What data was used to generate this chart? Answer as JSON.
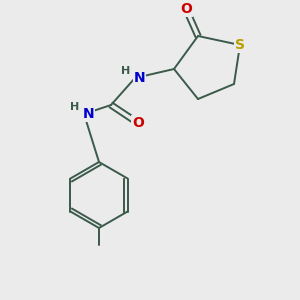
{
  "background_color": "#ebebeb",
  "bond_color": "#3a5a4a",
  "S_color": "#b8a000",
  "N_color": "#0000cc",
  "O_color": "#cc0000",
  "H_color": "#3a5a4a",
  "font_size_atoms": 10,
  "font_size_H": 8,
  "figsize": [
    3.0,
    3.0
  ],
  "dpi": 100,
  "xlim": [
    0,
    10
  ],
  "ylim": [
    0,
    10
  ]
}
